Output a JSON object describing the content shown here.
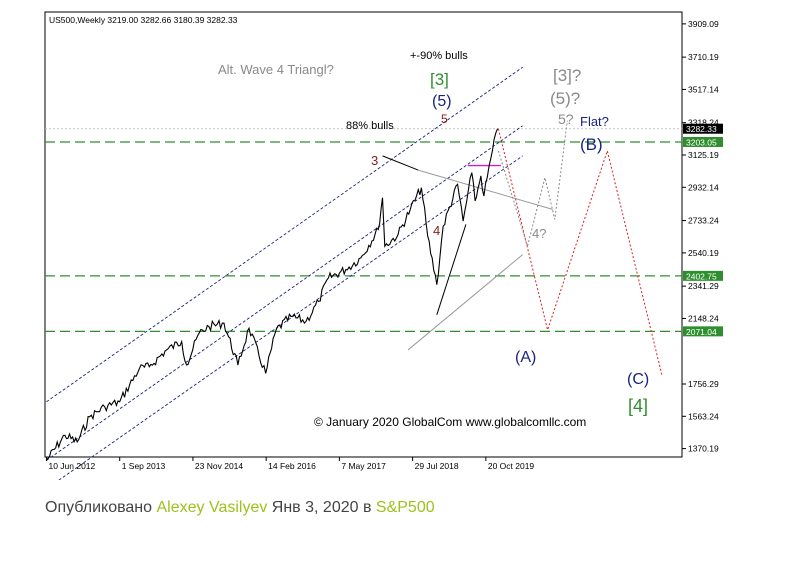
{
  "chart_data": {
    "type": "line",
    "title": "US500,Weekly  3219.00 3282.66 3180.39 3282.33",
    "ylim": [
      1320,
      3980
    ],
    "y_ticks": [
      "3909.09",
      "3710.19",
      "3517.14",
      "3318.24",
      "3125.19",
      "2932.14",
      "2733.24",
      "2540.19",
      "2341.29",
      "2148.24",
      "1756.29",
      "1563.24",
      "1370.19"
    ],
    "y_tick_values": [
      3909.09,
      3710.19,
      3517.14,
      3318.24,
      3125.19,
      2932.14,
      2733.24,
      2540.19,
      2341.29,
      2148.24,
      1756.29,
      1563.24,
      1370.19
    ],
    "x_ticks": [
      "10 Jun 2012",
      "1 Sep 2013",
      "23 Nov 2014",
      "14 Feb 2016",
      "7 May 2017",
      "29 Jul 2018",
      "20 Oct 2019"
    ],
    "x_tick_dates": [
      "2012-06-10",
      "2013-09-01",
      "2014-11-23",
      "2016-02-14",
      "2017-05-07",
      "2018-07-29",
      "2019-10-20"
    ],
    "xlim": [
      "2012-06-01",
      "2023-02-01"
    ],
    "last_price": "3282.33",
    "levels": [
      {
        "label": "3203.05",
        "value": 3203.05
      },
      {
        "label": "2402.75",
        "value": 2402.75
      },
      {
        "label": "2071.04",
        "value": 2071.04
      }
    ],
    "price_series": {
      "name": "S&P500",
      "points": [
        [
          "2012-06-10",
          1300
        ],
        [
          "2012-10-01",
          1450
        ],
        [
          "2012-12-15",
          1410
        ],
        [
          "2013-03-01",
          1560
        ],
        [
          "2013-06-01",
          1620
        ],
        [
          "2013-09-01",
          1650
        ],
        [
          "2013-12-31",
          1850
        ],
        [
          "2014-03-01",
          1860
        ],
        [
          "2014-06-15",
          1960
        ],
        [
          "2014-09-15",
          2010
        ],
        [
          "2014-10-15",
          1870
        ],
        [
          "2014-12-31",
          2060
        ],
        [
          "2015-03-01",
          2100
        ],
        [
          "2015-06-01",
          2120
        ],
        [
          "2015-08-25",
          1870
        ],
        [
          "2015-11-01",
          2090
        ],
        [
          "2016-02-11",
          1820
        ],
        [
          "2016-04-15",
          2080
        ],
        [
          "2016-07-15",
          2160
        ],
        [
          "2016-10-15",
          2130
        ],
        [
          "2016-12-31",
          2250
        ],
        [
          "2017-03-01",
          2390
        ],
        [
          "2017-06-15",
          2440
        ],
        [
          "2017-09-15",
          2510
        ],
        [
          "2017-12-31",
          2680
        ],
        [
          "2018-01-26",
          2870
        ],
        [
          "2018-02-09",
          2580
        ],
        [
          "2018-05-01",
          2650
        ],
        [
          "2018-07-15",
          2800
        ],
        [
          "2018-09-21",
          2930
        ],
        [
          "2018-10-29",
          2640
        ],
        [
          "2018-12-24",
          2350
        ],
        [
          "2019-02-01",
          2700
        ],
        [
          "2019-04-30",
          2950
        ],
        [
          "2019-06-03",
          2730
        ],
        [
          "2019-07-26",
          3020
        ],
        [
          "2019-08-15",
          2850
        ],
        [
          "2019-09-20",
          3000
        ],
        [
          "2019-10-08",
          2880
        ],
        [
          "2019-11-29",
          3150
        ],
        [
          "2019-12-31",
          3282.33
        ]
      ]
    },
    "channel_lines": {
      "upper": [
        [
          "2012-06-10",
          1650
        ],
        [
          "2020-06-01",
          3650
        ]
      ],
      "middle": [
        [
          "2012-06-10",
          1300
        ],
        [
          "2020-06-01",
          3300
        ]
      ],
      "lower": [
        [
          "2012-06-10",
          1130
        ],
        [
          "2020-06-01",
          3120
        ]
      ]
    },
    "triangle_lines": {
      "upper": [
        [
          "2018-09-01",
          3035
        ],
        [
          "2020-12-01",
          2800
        ]
      ],
      "lower": [
        [
          "2018-07-01",
          1960
        ],
        [
          "2020-06-01",
          2530
        ]
      ]
    },
    "wave4_lines": [
      [
        [
          "2018-12-24",
          2170
        ],
        [
          "2019-06-20",
          2710
        ]
      ],
      [
        [
          "2018-01-26",
          3120
        ],
        [
          "2018-09-01",
          3035
        ]
      ]
    ],
    "projection_main": [
      [
        "2020-01-05",
        3282
      ],
      [
        "2020-11-01",
        2080
      ],
      [
        "2021-11-01",
        3150
      ],
      [
        "2022-10-01",
        1810
      ]
    ],
    "projection_alt": [
      [
        "2020-01-05",
        3150
      ],
      [
        "2020-07-01",
        2580
      ],
      [
        "2020-10-15",
        2990
      ],
      [
        "2020-12-15",
        2740
      ],
      [
        "2021-03-01",
        3330
      ]
    ],
    "magenta_segment": [
      [
        "2019-07-01",
        3062
      ],
      [
        "2020-01-20",
        3062
      ]
    ],
    "gray_dotted_level": 3282.33,
    "labels": {
      "alt_wave": "Alt. Wave 4 Triangl?",
      "bulls_90": "+-90% bulls",
      "wave3_green": "[3]",
      "wave5_blue": "(5)",
      "wave5_red": "5",
      "bulls_88": "88% bulls",
      "wave3_red": "3",
      "wave4_red": "4",
      "wave3_gray": "[3]?",
      "wave5_gray": "(5)?",
      "wave5_small_gray": "5?",
      "flat": "Flat?",
      "waveB": "(B)",
      "wave4_gray": "4?",
      "waveA": "(A)",
      "waveC": "(C)",
      "wave4_green": "[4]",
      "copyright": "© January 2020 GlobalCom www.globalcomllc.com"
    }
  },
  "caption": {
    "prefix": "Опубликовано ",
    "author": "Alexey Vasilyev",
    "date_text": " Янв 3, 2020 в ",
    "tag": "S&P500"
  },
  "colors": {
    "dark_green": "#2f8f2f",
    "navy": "#1a237e",
    "dark_red": "#8b1a1a",
    "gray": "#8a8a8a",
    "magenta": "#d21bd2",
    "red_dotted": "#e02020"
  }
}
